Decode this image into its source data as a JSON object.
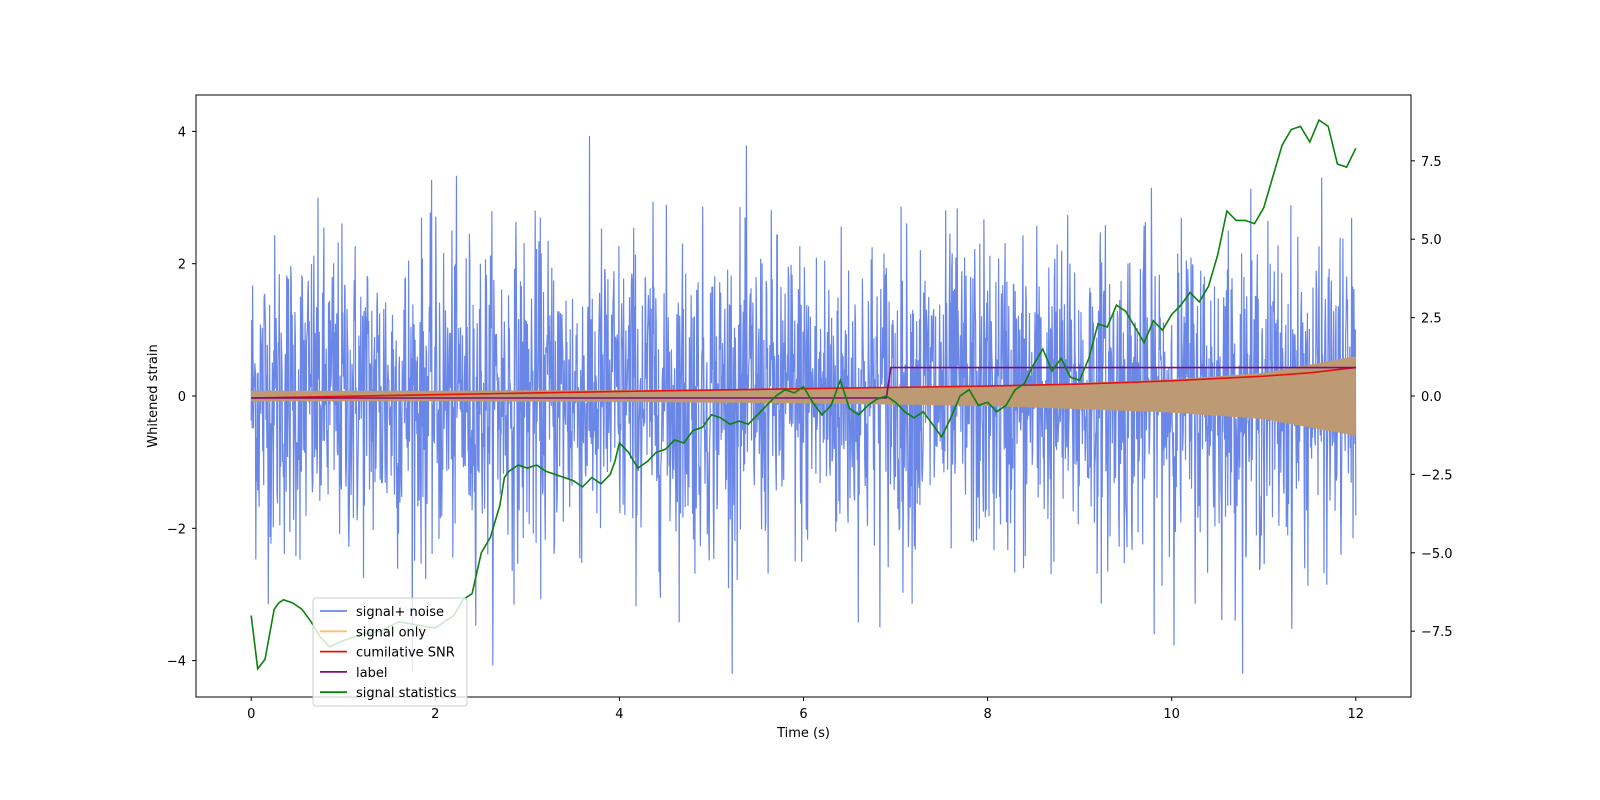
{
  "chart_data": {
    "type": "line",
    "title": "",
    "xlabel": "Time (s)",
    "ylabel": "Whitened strain",
    "y2label": "",
    "xlim": [
      -0.6,
      12.6
    ],
    "ylim": [
      -4.55,
      4.55
    ],
    "y2lim": [
      -9.6,
      9.6
    ],
    "x_ticks": [
      0,
      2,
      4,
      6,
      8,
      10,
      12
    ],
    "y_ticks": [
      -4,
      -2,
      0,
      2,
      4
    ],
    "y2_ticks": [
      -7.5,
      -5.0,
      -2.5,
      0.0,
      2.5,
      5.0,
      7.5
    ],
    "x_tick_labels": [
      "0",
      "2",
      "4",
      "6",
      "8",
      "10",
      "12"
    ],
    "y_tick_labels": [
      "−4",
      "−2",
      "0",
      "2",
      "4"
    ],
    "y2_tick_labels": [
      "−7.5",
      "−5.0",
      "−2.5",
      "0.0",
      "2.5",
      "5.0",
      "7.5"
    ],
    "grid": false,
    "legend_position": "lower-left",
    "series": [
      {
        "name": "signal+ noise",
        "color": "#6a87e8",
        "axis": "left",
        "kind": "noise-band",
        "x_range": [
          0,
          12
        ],
        "sigma": 1.2,
        "peak_range": [
          -4.2,
          4.1
        ]
      },
      {
        "name": "signal only",
        "color": "#ffbe6e",
        "axis": "left",
        "kind": "chirp-envelope",
        "x_range": [
          0,
          12
        ],
        "envelope": {
          "x": [
            0,
            2,
            4,
            6,
            8,
            10,
            11,
            12
          ],
          "amp": [
            0.08,
            0.08,
            0.09,
            0.11,
            0.15,
            0.25,
            0.35,
            0.6
          ]
        }
      },
      {
        "name": "cumilative SNR",
        "color": "#e51010",
        "axis": "left",
        "x": [
          0,
          2,
          4,
          6,
          8,
          9,
          10,
          11,
          11.5,
          12
        ],
        "y": [
          -0.03,
          0.02,
          0.07,
          0.11,
          0.15,
          0.18,
          0.23,
          0.3,
          0.35,
          0.43
        ]
      },
      {
        "name": "label",
        "color": "#7b0e7b",
        "axis": "left",
        "x": [
          0,
          6.9,
          6.95,
          12
        ],
        "y": [
          -0.03,
          -0.03,
          0.43,
          0.43
        ]
      },
      {
        "name": "signal statistics",
        "color": "#0d800d",
        "axis": "right",
        "x": [
          0,
          0.07,
          0.15,
          0.2,
          0.25,
          0.3,
          0.35,
          0.45,
          0.55,
          0.65,
          0.75,
          0.85,
          1.0,
          1.2,
          1.4,
          1.6,
          1.8,
          2.0,
          2.2,
          2.3,
          2.4,
          2.5,
          2.6,
          2.65,
          2.7,
          2.75,
          2.8,
          2.9,
          3.0,
          3.1,
          3.2,
          3.3,
          3.4,
          3.5,
          3.6,
          3.7,
          3.8,
          3.9,
          3.95,
          4.0,
          4.1,
          4.2,
          4.3,
          4.4,
          4.5,
          4.6,
          4.7,
          4.8,
          4.9,
          5.0,
          5.1,
          5.2,
          5.3,
          5.4,
          5.5,
          5.6,
          5.7,
          5.8,
          5.9,
          6.0,
          6.1,
          6.2,
          6.3,
          6.4,
          6.5,
          6.6,
          6.7,
          6.8,
          6.9,
          7.0,
          7.1,
          7.2,
          7.3,
          7.4,
          7.5,
          7.6,
          7.7,
          7.8,
          7.9,
          8.0,
          8.1,
          8.2,
          8.3,
          8.4,
          8.5,
          8.6,
          8.7,
          8.8,
          8.9,
          9.0,
          9.1,
          9.2,
          9.3,
          9.4,
          9.5,
          9.6,
          9.7,
          9.8,
          9.9,
          10.0,
          10.1,
          10.2,
          10.3,
          10.4,
          10.5,
          10.6,
          10.7,
          10.8,
          10.9,
          11.0,
          11.1,
          11.2,
          11.3,
          11.4,
          11.5,
          11.6,
          11.7,
          11.8,
          11.9,
          12.0
        ],
        "y": [
          -7.0,
          -8.7,
          -8.4,
          -7.6,
          -6.8,
          -6.6,
          -6.5,
          -6.6,
          -6.8,
          -7.2,
          -7.7,
          -8.0,
          -7.8,
          -7.6,
          -7.5,
          -7.2,
          -7.3,
          -7.4,
          -7.0,
          -6.5,
          -6.3,
          -5.0,
          -4.5,
          -4.0,
          -3.5,
          -2.6,
          -2.4,
          -2.2,
          -2.3,
          -2.2,
          -2.4,
          -2.5,
          -2.6,
          -2.7,
          -2.9,
          -2.6,
          -2.8,
          -2.5,
          -2.1,
          -1.5,
          -1.8,
          -2.3,
          -2.1,
          -1.8,
          -1.7,
          -1.4,
          -1.5,
          -1.1,
          -1.0,
          -0.6,
          -0.7,
          -0.9,
          -0.8,
          -0.9,
          -0.6,
          -0.3,
          0.0,
          0.2,
          0.1,
          0.3,
          -0.2,
          -0.6,
          -0.3,
          0.5,
          -0.4,
          -0.6,
          -0.3,
          -0.1,
          0.0,
          -0.2,
          -0.5,
          -0.7,
          -0.5,
          -0.9,
          -1.3,
          -0.7,
          0.0,
          0.2,
          -0.3,
          -0.2,
          -0.5,
          -0.3,
          0.2,
          0.4,
          1.0,
          1.5,
          0.8,
          1.2,
          0.6,
          0.5,
          1.2,
          2.3,
          2.2,
          2.9,
          2.7,
          2.2,
          1.7,
          2.4,
          2.1,
          2.6,
          2.9,
          3.3,
          3.0,
          3.5,
          4.5,
          5.9,
          5.6,
          5.6,
          5.5,
          6.0,
          7.0,
          8.0,
          8.5,
          8.6,
          8.1,
          8.8,
          8.6,
          7.4,
          7.3,
          7.9
        ]
      }
    ]
  }
}
